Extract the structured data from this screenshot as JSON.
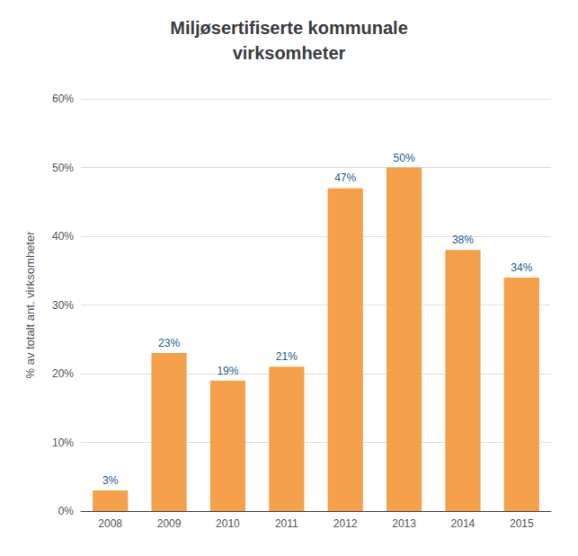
{
  "chart_data": {
    "type": "bar",
    "title": "Miljøsertifiserte kommunale\nvirksomheter",
    "categories": [
      "2008",
      "2009",
      "2010",
      "2011",
      "2012",
      "2013",
      "2014",
      "2015"
    ],
    "values": [
      3,
      23,
      19,
      21,
      47,
      50,
      38,
      34
    ],
    "value_labels": [
      "3%",
      "23%",
      "19%",
      "21%",
      "47%",
      "50%",
      "38%",
      "34%"
    ],
    "data_labels": true,
    "color": "#F5A04B",
    "ylabel": "% av totalt ant. virksomheter",
    "ylim": [
      0,
      60
    ],
    "yticks": [
      {
        "value": 0,
        "label": "0%"
      },
      {
        "value": 10,
        "label": "10%"
      },
      {
        "value": 20,
        "label": "20%"
      },
      {
        "value": 30,
        "label": "30%"
      },
      {
        "value": 40,
        "label": "40%"
      },
      {
        "value": 50,
        "label": "50%"
      },
      {
        "value": 60,
        "label": "60%"
      }
    ],
    "grid": true
  }
}
